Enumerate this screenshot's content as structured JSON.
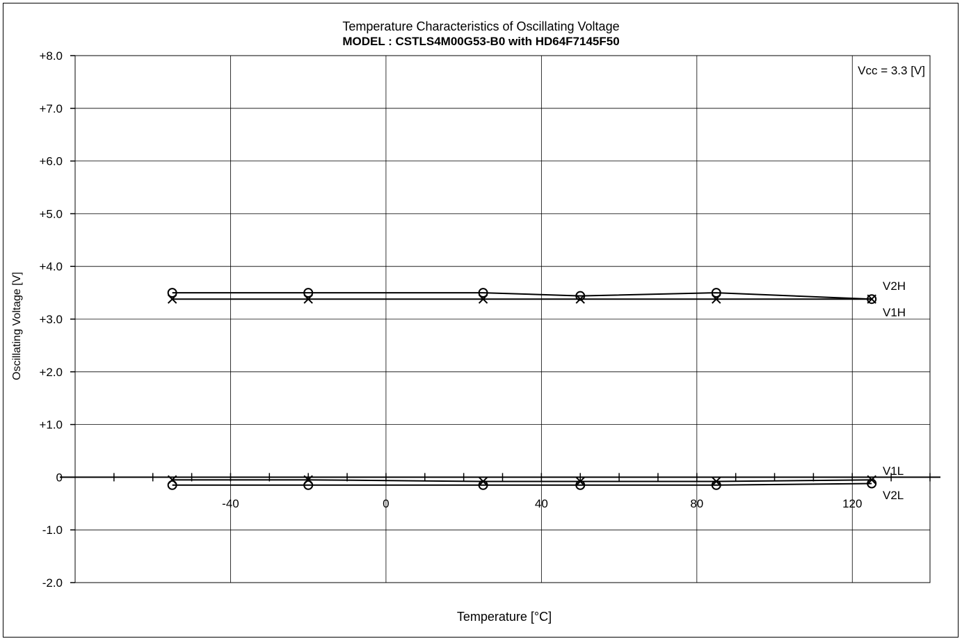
{
  "chart_data": {
    "type": "line",
    "title": "Temperature Characteristics of Oscillating Voltage",
    "subtitle": "MODEL : CSTLS4M00G53-B0 with HD64F7145F50",
    "xlabel": "Temperature [°C]",
    "ylabel": "Oscillating Voltage [V]",
    "annotation": "Vcc = 3.3 [V]",
    "xlim": [
      -80,
      140
    ],
    "ylim": [
      -2.0,
      8.0
    ],
    "x_ticks": [
      -40,
      0,
      40,
      80,
      120
    ],
    "x_tick_labels": [
      "-40",
      "0",
      "40",
      "80",
      "120"
    ],
    "y_ticks": [
      -2.0,
      -1.0,
      0,
      1.0,
      2.0,
      3.0,
      4.0,
      5.0,
      6.0,
      7.0,
      8.0
    ],
    "y_tick_labels": [
      "-2.0",
      "-1.0",
      "0",
      "+1.0",
      "+2.0",
      "+3.0",
      "+4.0",
      "+5.0",
      "+6.0",
      "+7.0",
      "+8.0"
    ],
    "grid": true,
    "series": [
      {
        "name": "V2H",
        "marker": "circle",
        "x": [
          -55,
          -20,
          25,
          50,
          85,
          125
        ],
        "values": [
          3.5,
          3.5,
          3.5,
          3.44,
          3.5,
          3.38
        ]
      },
      {
        "name": "V1H",
        "marker": "cross",
        "x": [
          -55,
          -20,
          25,
          50,
          85,
          125
        ],
        "values": [
          3.38,
          3.38,
          3.38,
          3.38,
          3.38,
          3.38
        ]
      },
      {
        "name": "V1L",
        "marker": "cross",
        "x": [
          -55,
          -20,
          25,
          50,
          85,
          125
        ],
        "values": [
          -0.05,
          -0.05,
          -0.08,
          -0.08,
          -0.08,
          -0.05
        ]
      },
      {
        "name": "V2L",
        "marker": "circle",
        "x": [
          -55,
          -20,
          25,
          50,
          85,
          125
        ],
        "values": [
          -0.15,
          -0.15,
          -0.15,
          -0.15,
          -0.15,
          -0.12
        ]
      }
    ]
  }
}
